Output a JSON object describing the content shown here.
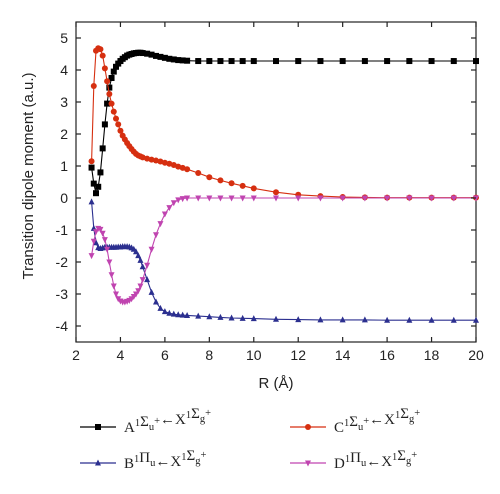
{
  "chart_data": {
    "type": "line",
    "xlabel": "R (Å)",
    "ylabel": "Transition dipole moment (a.u.)",
    "xlim": [
      2,
      20
    ],
    "ylim": [
      -4.5,
      5.5
    ],
    "xticks": [
      2,
      4,
      6,
      8,
      10,
      12,
      14,
      16,
      18,
      20
    ],
    "yticks": [
      -4,
      -3,
      -2,
      -1,
      0,
      1,
      2,
      3,
      4,
      5
    ],
    "grid": false,
    "legend_position": "below",
    "series": [
      {
        "name": "A¹Σu⁺←X¹Σg⁺",
        "legend": {
          "main": "A",
          "parts": [
            [
              "1",
              "sup"
            ],
            [
              "Σ",
              ""
            ],
            [
              "u",
              "sub"
            ],
            [
              "+",
              "sup"
            ],
            [
              "←X",
              ""
            ],
            [
              "1",
              "sup"
            ],
            [
              "Σ",
              ""
            ],
            [
              "g",
              "sub"
            ],
            [
              "+",
              "sup"
            ]
          ]
        },
        "color": "#000000",
        "marker": "square",
        "x": [
          2.7,
          2.8,
          2.9,
          3.0,
          3.1,
          3.2,
          3.3,
          3.4,
          3.5,
          3.6,
          3.7,
          3.8,
          3.9,
          4.0,
          4.1,
          4.2,
          4.3,
          4.4,
          4.5,
          4.6,
          4.7,
          4.8,
          4.9,
          5.0,
          5.2,
          5.4,
          5.6,
          5.8,
          6.0,
          6.2,
          6.4,
          6.6,
          6.8,
          7.0,
          7.5,
          8.0,
          8.5,
          9.0,
          9.5,
          10,
          11,
          12,
          13,
          14,
          15,
          16,
          17,
          18,
          19,
          20
        ],
        "y": [
          0.95,
          0.45,
          0.15,
          0.35,
          0.8,
          1.55,
          2.3,
          2.95,
          3.45,
          3.75,
          3.95,
          4.1,
          4.2,
          4.28,
          4.35,
          4.4,
          4.45,
          4.48,
          4.5,
          4.52,
          4.53,
          4.54,
          4.54,
          4.53,
          4.51,
          4.48,
          4.44,
          4.41,
          4.38,
          4.35,
          4.33,
          4.31,
          4.3,
          4.29,
          4.28,
          4.28,
          4.28,
          4.28,
          4.28,
          4.28,
          4.28,
          4.28,
          4.28,
          4.28,
          4.28,
          4.28,
          4.28,
          4.28,
          4.28,
          4.28
        ]
      },
      {
        "name": "C¹Σu⁺←X¹Σg⁺",
        "legend": {
          "main": "C",
          "parts": [
            [
              "1",
              "sup"
            ],
            [
              "Σ",
              ""
            ],
            [
              "u",
              "sub"
            ],
            [
              "+",
              "sup"
            ],
            [
              "←X",
              ""
            ],
            [
              "1",
              "sup"
            ],
            [
              "Σ",
              ""
            ],
            [
              "g",
              "sub"
            ],
            [
              "+",
              "sup"
            ]
          ]
        },
        "color": "#d62f10",
        "marker": "circle",
        "x": [
          2.7,
          2.8,
          2.9,
          3.0,
          3.1,
          3.2,
          3.3,
          3.4,
          3.5,
          3.6,
          3.7,
          3.8,
          3.9,
          4.0,
          4.1,
          4.2,
          4.3,
          4.4,
          4.5,
          4.6,
          4.7,
          4.8,
          4.9,
          5.0,
          5.2,
          5.4,
          5.6,
          5.8,
          6.0,
          6.2,
          6.4,
          6.6,
          6.8,
          7.0,
          7.5,
          8.0,
          8.5,
          9.0,
          9.5,
          10,
          11,
          12,
          13,
          14,
          15,
          16,
          17,
          18,
          19,
          20
        ],
        "y": [
          1.15,
          3.5,
          4.6,
          4.68,
          4.65,
          4.45,
          4.05,
          3.65,
          3.25,
          2.95,
          2.7,
          2.48,
          2.3,
          2.1,
          1.95,
          1.83,
          1.72,
          1.62,
          1.53,
          1.45,
          1.38,
          1.33,
          1.3,
          1.27,
          1.23,
          1.2,
          1.17,
          1.14,
          1.1,
          1.07,
          1.03,
          0.98,
          0.94,
          0.9,
          0.78,
          0.65,
          0.55,
          0.46,
          0.38,
          0.3,
          0.18,
          0.1,
          0.06,
          0.03,
          0.02,
          0.01,
          0.01,
          0.01,
          0.01,
          0.01
        ]
      },
      {
        "name": "B¹Πu←X¹Σg⁺",
        "legend": {
          "main": "B",
          "parts": [
            [
              "1",
              "sup"
            ],
            [
              "Π",
              ""
            ],
            [
              "u",
              "sub"
            ],
            [
              "←X",
              ""
            ],
            [
              "1",
              "sup"
            ],
            [
              "Σ",
              ""
            ],
            [
              "g",
              "sub"
            ],
            [
              "+",
              "sup"
            ]
          ]
        },
        "color": "#2b2f8f",
        "marker": "triangle-up",
        "x": [
          2.7,
          2.8,
          2.9,
          3.0,
          3.1,
          3.2,
          3.3,
          3.4,
          3.5,
          3.6,
          3.7,
          3.8,
          3.9,
          4.0,
          4.1,
          4.2,
          4.3,
          4.4,
          4.5,
          4.6,
          4.7,
          4.8,
          4.9,
          5.0,
          5.2,
          5.4,
          5.6,
          5.8,
          6.0,
          6.2,
          6.4,
          6.6,
          6.8,
          7.0,
          7.5,
          8.0,
          8.5,
          9.0,
          9.5,
          10,
          11,
          12,
          13,
          14,
          15,
          16,
          17,
          18,
          19,
          20
        ],
        "y": [
          -0.12,
          -0.95,
          -1.4,
          -1.55,
          -1.58,
          -1.56,
          -1.54,
          -1.54,
          -1.54,
          -1.54,
          -1.54,
          -1.54,
          -1.53,
          -1.53,
          -1.52,
          -1.52,
          -1.52,
          -1.53,
          -1.56,
          -1.6,
          -1.68,
          -1.8,
          -1.95,
          -2.15,
          -2.55,
          -2.95,
          -3.25,
          -3.45,
          -3.55,
          -3.6,
          -3.63,
          -3.65,
          -3.66,
          -3.67,
          -3.69,
          -3.71,
          -3.73,
          -3.75,
          -3.76,
          -3.77,
          -3.79,
          -3.8,
          -3.81,
          -3.81,
          -3.81,
          -3.82,
          -3.82,
          -3.82,
          -3.82,
          -3.82
        ]
      },
      {
        "name": "D¹Πu←X¹Σg⁺",
        "legend": {
          "main": "D",
          "parts": [
            [
              "1",
              "sup"
            ],
            [
              "Π",
              ""
            ],
            [
              "u",
              "sub"
            ],
            [
              "←X",
              ""
            ],
            [
              "1",
              "sup"
            ],
            [
              "Σ",
              ""
            ],
            [
              "g",
              "sub"
            ],
            [
              "+",
              "sup"
            ]
          ]
        },
        "color": "#c044b0",
        "marker": "triangle-down",
        "x": [
          2.7,
          2.8,
          2.9,
          3.0,
          3.1,
          3.2,
          3.3,
          3.4,
          3.5,
          3.6,
          3.7,
          3.8,
          3.9,
          4.0,
          4.1,
          4.2,
          4.3,
          4.4,
          4.5,
          4.6,
          4.7,
          4.8,
          4.9,
          5.0,
          5.2,
          5.4,
          5.6,
          5.8,
          6.0,
          6.2,
          6.4,
          6.6,
          6.8,
          7.0,
          7.5,
          8.0,
          8.5,
          9.0,
          9.5,
          10,
          11,
          12,
          13,
          14,
          15,
          16,
          17,
          18,
          19,
          20
        ],
        "y": [
          -1.8,
          -1.35,
          -1.05,
          -0.95,
          -0.98,
          -1.1,
          -1.3,
          -1.6,
          -2.0,
          -2.4,
          -2.75,
          -3.0,
          -3.15,
          -3.22,
          -3.25,
          -3.25,
          -3.23,
          -3.2,
          -3.15,
          -3.08,
          -3.0,
          -2.9,
          -2.75,
          -2.55,
          -2.1,
          -1.6,
          -1.15,
          -0.8,
          -0.5,
          -0.3,
          -0.15,
          -0.06,
          -0.02,
          0.0,
          0.0,
          0.0,
          0.0,
          0.0,
          0.0,
          0.0,
          0.0,
          0.0,
          0.0,
          0.0,
          0.0,
          0.0,
          0.0,
          0.0,
          0.0,
          0.0
        ]
      }
    ]
  }
}
